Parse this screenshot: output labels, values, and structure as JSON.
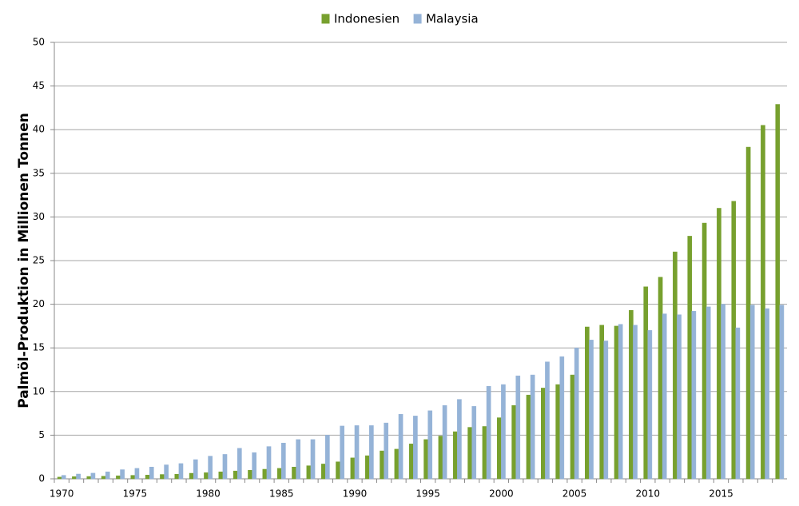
{
  "chart_data": {
    "type": "bar",
    "ylabel": "Palmöl-Produktion in Millionen Tonnen",
    "categories": [
      "1970",
      null,
      null,
      null,
      null,
      "1975",
      null,
      null,
      null,
      null,
      "1980",
      null,
      null,
      null,
      null,
      "1985",
      null,
      null,
      null,
      null,
      "1990",
      null,
      null,
      null,
      null,
      "1995",
      null,
      null,
      null,
      null,
      "2000",
      null,
      null,
      null,
      null,
      "2005",
      null,
      null,
      null,
      null,
      "2010",
      null,
      null,
      null,
      null,
      "2015",
      null,
      null,
      null,
      null
    ],
    "series": [
      {
        "name": "Indonesien",
        "color": "#77a02e",
        "values": [
          0.2,
          0.25,
          0.27,
          0.3,
          0.35,
          0.4,
          0.43,
          0.5,
          0.53,
          0.64,
          0.7,
          0.8,
          0.9,
          0.98,
          1.1,
          1.2,
          1.35,
          1.5,
          1.7,
          1.95,
          2.4,
          2.65,
          3.2,
          3.4,
          4.0,
          4.5,
          4.9,
          5.4,
          5.9,
          6.0,
          7.0,
          8.4,
          9.6,
          10.4,
          10.8,
          11.9,
          17.4,
          17.6,
          17.5,
          19.3,
          22.0,
          23.1,
          26.0,
          27.8,
          29.3,
          31.0,
          31.8,
          38.0,
          40.5,
          42.9
        ]
      },
      {
        "name": "Malaysia",
        "color": "#95b3d7",
        "values": [
          0.4,
          0.55,
          0.65,
          0.8,
          1.05,
          1.2,
          1.35,
          1.6,
          1.75,
          2.2,
          2.6,
          2.8,
          3.5,
          3.0,
          3.7,
          4.1,
          4.5,
          4.5,
          5.0,
          6.05,
          6.1,
          6.1,
          6.4,
          7.4,
          7.2,
          7.8,
          8.4,
          9.1,
          8.3,
          10.6,
          10.8,
          11.8,
          11.9,
          13.4,
          14.0,
          15.0,
          15.9,
          15.8,
          17.7,
          17.6,
          17.0,
          18.9,
          18.8,
          19.2,
          19.7,
          20.0,
          17.3,
          19.9,
          19.5,
          19.9
        ]
      }
    ],
    "ylim": [
      0,
      50
    ],
    "yticks": [
      0,
      5,
      10,
      15,
      20,
      25,
      30,
      35,
      40,
      45,
      50
    ],
    "grid": true,
    "legend": "top"
  }
}
